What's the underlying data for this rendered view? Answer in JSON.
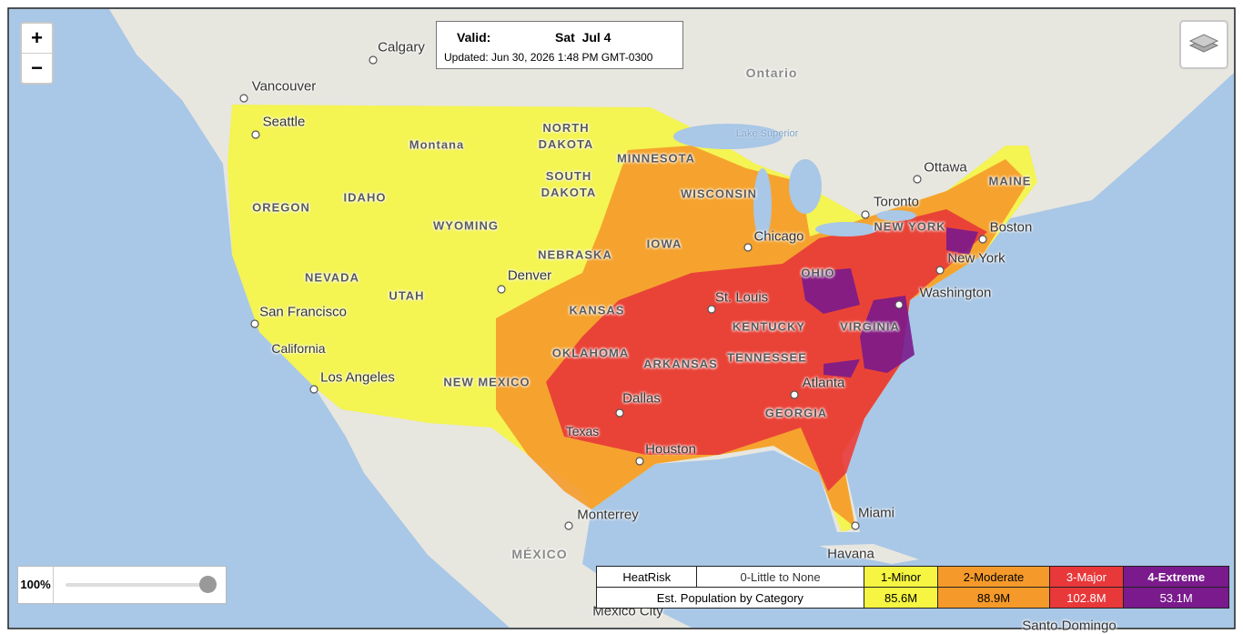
{
  "zoom_controls": {
    "zoom_in": "+",
    "zoom_out": "−"
  },
  "validity": {
    "label": "Valid:",
    "date": "Sat  Jul 4",
    "updated": "Updated: Jun 30, 2026 1:48 PM GMT-0300"
  },
  "opacity": {
    "value": "100%"
  },
  "legend": {
    "header": "HeatRisk",
    "categories": [
      {
        "label": "0-Little to None",
        "color": "#ffffff"
      },
      {
        "label": "1-Minor",
        "color": "#f5f542"
      },
      {
        "label": "2-Moderate",
        "color": "#f59a2a"
      },
      {
        "label": "3-Major",
        "color": "#e8383a"
      },
      {
        "label": "4-Extreme",
        "color": "#7a1a8c"
      }
    ],
    "population_label": "Est. Population by Category",
    "population": [
      "85.6M",
      "88.9M",
      "102.8M",
      "53.1M"
    ]
  },
  "map_labels": [
    "Calgary",
    "Vancouver",
    "Seattle",
    "Montana",
    "NORTH DAKOTA",
    "SOUTH DAKOTA",
    "MINNESOTA",
    "WISCONSIN",
    "OREGON",
    "IDAHO",
    "WYOMING",
    "NEVADA",
    "UTAH",
    "Denver",
    "NEBRASKA",
    "IOWA",
    "Chicago",
    "Ontario",
    "Lake Superior",
    "Ottawa",
    "Toronto",
    "MAINE",
    "NEW YORK",
    "Boston",
    "New York",
    "Washington",
    "OHIO",
    "St. Louis",
    "KANSAS",
    "San Francisco",
    "California",
    "Los Angeles",
    "OKLAHOMA",
    "ARKANSAS",
    "KENTUCKY",
    "VIRGINIA",
    "TENNESSEE",
    "NEW MEXICO",
    "Dallas",
    "Atlanta",
    "Texas",
    "GEORGIA",
    "Houston",
    "Miami",
    "Monterrey",
    "MÉXICO",
    "Havana",
    "Mexico City",
    "Santo Domingo"
  ]
}
